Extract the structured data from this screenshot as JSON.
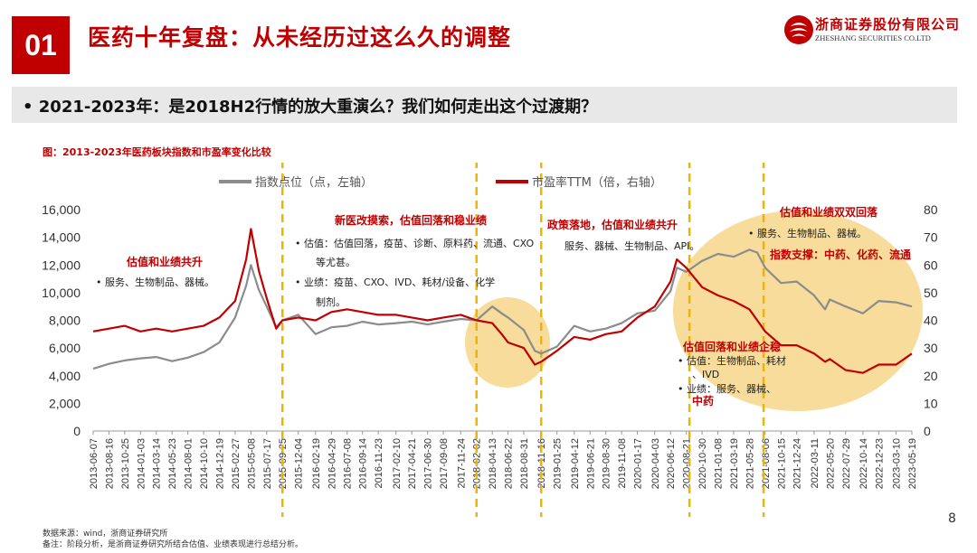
{
  "header": {
    "section_number": "01",
    "title": "医药十年复盘：从未经历过这么久的调整",
    "company_cn": "浙商证券股份有限公司",
    "company_en": "ZHESHANG SECURITIES CO.LTD"
  },
  "subtitle": "•  2021-2023年：是2018H2行情的放大重演么？我们如何走出这个过渡期？",
  "footer": {
    "source": "数据来源：wind，浙商证券研究所",
    "note": "备注：阶段分析，是浙商证券研究所结合估值、业绩表现进行总结分析。",
    "page": "8"
  },
  "colors": {
    "brand_red": "#c00000",
    "index_line": "#8c8c8c",
    "pe_line": "#c00000",
    "dash": "#f0b400",
    "highlight": "#f6d68a"
  },
  "chart_data": {
    "type": "line",
    "title": "图：2013-2023年医药板块指数和市盈率变化比较",
    "x_tick_labels": [
      "2013-06-07",
      "2013-08-16",
      "2013-10-25",
      "2014-01-03",
      "2014-03-14",
      "2014-05-23",
      "2014-08-01",
      "2014-10-10",
      "2014-12-19",
      "2015-02-27",
      "2015-05-08",
      "2015-07-17",
      "2015-09-25",
      "2015-12-04",
      "2016-02-19",
      "2016-04-29",
      "2016-07-08",
      "2016-09-14",
      "2016-11-23",
      "2017-02-10",
      "2017-04-21",
      "2017-06-30",
      "2017-09-08",
      "2017-11-24",
      "2018-02-02",
      "2018-04-13",
      "2018-06-22",
      "2018-08-31",
      "2018-11-16",
      "2019-01-25",
      "2019-04-12",
      "2019-06-21",
      "2019-08-30",
      "2019-11-08",
      "2020-01-17",
      "2020-04-03",
      "2020-06-12",
      "2020-08-21",
      "2020-10-30",
      "2021-01-08",
      "2021-03-19",
      "2021-05-28",
      "2021-08-06",
      "2021-10-15",
      "2021-12-24",
      "2022-03-11",
      "2022-05-20",
      "2022-07-29",
      "2022-10-14",
      "2022-12-23",
      "2023-03-10",
      "2023-05-19"
    ],
    "y_left": {
      "ticks": [
        "0",
        "2,000",
        "4,000",
        "6,000",
        "8,000",
        "10,000",
        "12,000",
        "14,000",
        "16,000"
      ],
      "range": [
        0,
        16000
      ]
    },
    "y_right": {
      "ticks": [
        "0",
        "10",
        "20",
        "30",
        "40",
        "50",
        "60",
        "70",
        "80"
      ],
      "range": [
        0,
        80
      ]
    },
    "legend": {
      "placement": "top",
      "index": "指数点位（点，左轴）",
      "pe": "市盈率TTM（倍，右轴）"
    },
    "series": [
      {
        "name": "指数点位（点，左轴）",
        "axis": "left",
        "x": [
          "2013-06-07",
          "2013-08-16",
          "2013-10-25",
          "2014-01-03",
          "2014-03-14",
          "2014-05-23",
          "2014-08-01",
          "2014-10-10",
          "2014-12-19",
          "2015-02-27",
          "2015-04-17",
          "2015-05-08",
          "2015-06-12",
          "2015-07-17",
          "2015-08-28",
          "2015-09-25",
          "2015-12-04",
          "2016-02-19",
          "2016-04-29",
          "2016-07-08",
          "2016-09-14",
          "2016-11-23",
          "2017-02-10",
          "2017-04-21",
          "2017-06-30",
          "2017-09-08",
          "2017-11-24",
          "2018-02-02",
          "2018-04-13",
          "2018-05-25",
          "2018-06-22",
          "2018-08-31",
          "2018-10-19",
          "2018-11-16",
          "2019-01-25",
          "2019-04-12",
          "2019-06-21",
          "2019-08-30",
          "2019-11-08",
          "2020-01-17",
          "2020-04-03",
          "2020-06-12",
          "2020-07-10",
          "2020-08-21",
          "2020-10-30",
          "2021-01-08",
          "2021-03-19",
          "2021-05-28",
          "2021-07-02",
          "2021-08-06",
          "2021-10-15",
          "2021-12-24",
          "2022-03-11",
          "2022-04-29",
          "2022-05-20",
          "2022-07-29",
          "2022-10-14",
          "2022-12-23",
          "2023-03-10",
          "2023-05-19"
        ],
        "values": [
          4500,
          4850,
          5100,
          5250,
          5350,
          5050,
          5300,
          5700,
          6400,
          8200,
          10500,
          12000,
          10200,
          9000,
          7500,
          8000,
          8400,
          7000,
          7500,
          7600,
          7900,
          7700,
          7800,
          7900,
          7700,
          7900,
          8100,
          8000,
          9000,
          8500,
          8200,
          7300,
          5800,
          5600,
          6100,
          7600,
          7200,
          7400,
          7800,
          8500,
          8700,
          10100,
          11800,
          11500,
          12300,
          12800,
          12600,
          13100,
          12900,
          11800,
          10700,
          10800,
          9800,
          8800,
          9500,
          9000,
          8500,
          9400,
          9300,
          9000
        ]
      },
      {
        "name": "市盈率TTM（倍，右轴）",
        "axis": "right",
        "x": [
          "2013-06-07",
          "2013-08-16",
          "2013-10-25",
          "2014-01-03",
          "2014-03-14",
          "2014-05-23",
          "2014-08-01",
          "2014-10-10",
          "2014-12-19",
          "2015-02-27",
          "2015-04-17",
          "2015-05-08",
          "2015-06-12",
          "2015-07-17",
          "2015-08-28",
          "2015-09-25",
          "2015-12-04",
          "2016-02-19",
          "2016-04-29",
          "2016-07-08",
          "2016-09-14",
          "2016-11-23",
          "2017-02-10",
          "2017-04-21",
          "2017-06-30",
          "2017-09-08",
          "2017-11-24",
          "2018-02-02",
          "2018-04-13",
          "2018-05-25",
          "2018-06-22",
          "2018-08-31",
          "2018-10-19",
          "2018-11-16",
          "2019-01-25",
          "2019-04-12",
          "2019-06-21",
          "2019-08-30",
          "2019-11-08",
          "2020-01-17",
          "2020-04-03",
          "2020-06-12",
          "2020-07-10",
          "2020-08-21",
          "2020-10-30",
          "2021-01-08",
          "2021-03-19",
          "2021-05-28",
          "2021-07-02",
          "2021-08-06",
          "2021-10-15",
          "2021-12-24",
          "2022-03-11",
          "2022-04-29",
          "2022-05-20",
          "2022-07-29",
          "2022-10-14",
          "2022-12-23",
          "2023-03-10",
          "2023-05-19"
        ],
        "values": [
          36,
          37,
          38,
          36,
          37,
          36,
          37,
          38,
          41,
          47,
          62,
          73,
          58,
          48,
          37,
          40,
          41,
          40,
          43,
          44,
          43,
          42,
          42,
          41,
          40,
          41,
          42,
          40,
          39,
          35,
          32,
          30,
          24,
          25,
          29,
          34,
          33,
          35,
          36,
          41,
          45,
          54,
          62,
          59,
          52,
          49,
          47,
          44,
          40,
          36,
          31,
          31,
          28,
          25,
          26,
          22,
          21,
          24,
          24,
          28
        ]
      }
    ],
    "dashed_markers": [
      "2015-09-25",
      "2018-02-02",
      "2018-11-16",
      "2020-09-04",
      "2021-07-30"
    ],
    "annotations": [
      {
        "heading": "估值和业绩共升",
        "items": [
          "•   服务、生物制品、器械。"
        ]
      },
      {
        "heading": "新医改摸索，估值回落和稳业绩",
        "items": [
          "•   估值：估值回落，疫苗、诊断、原料药、流通、CXO等尤甚。",
          "•   业绩：疫苗、CXO、IVD、耗材/设备、化学制剂。"
        ]
      },
      {
        "heading": "政策落地，估值和业绩共升",
        "items": [
          "服务、器械、生物制品、API。"
        ]
      },
      {
        "heading": "估值和业绩双双回落",
        "items": [
          "•   服务、生物制品、器械。"
        ],
        "extra": "指数支撑：中药、化药、流通"
      },
      {
        "heading": "估值回落和业绩企稳",
        "items": [
          "•   估值：生物制品、耗材、IVD",
          "•   业绩：服务、器械、"
        ],
        "extra": "中药"
      }
    ]
  }
}
